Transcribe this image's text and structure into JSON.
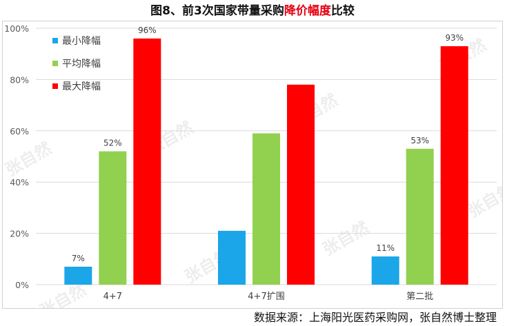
{
  "title": {
    "prefix": "图8、前3次国家带量采购",
    "highlight": "降价幅度",
    "suffix": "比较"
  },
  "source": "数据来源：上海阳光医药采购网，张自然博士整理",
  "watermark": "张自然",
  "colors": {
    "min": "#1aa6e8",
    "avg": "#92d050",
    "max": "#ff0000",
    "highlight_text": "#e60012"
  },
  "chart_data": {
    "type": "bar",
    "categories": [
      "4+7",
      "4+7扩围",
      "第二批"
    ],
    "series": [
      {
        "name": "最小降幅",
        "values": [
          7,
          21,
          11
        ],
        "labels": [
          "7%",
          "",
          "11%"
        ]
      },
      {
        "name": "平均降幅",
        "values": [
          52,
          59,
          53
        ],
        "labels": [
          "52%",
          "",
          "53%"
        ]
      },
      {
        "name": "最大降幅",
        "values": [
          96,
          78,
          93
        ],
        "labels": [
          "96%",
          "",
          "93%"
        ]
      }
    ],
    "ylim": [
      0,
      100
    ],
    "yticks": [
      "0%",
      "20%",
      "40%",
      "60%",
      "80%",
      "100%"
    ],
    "ytick_values": [
      0,
      20,
      40,
      60,
      80,
      100
    ],
    "grid": true,
    "legend_position": "top-left"
  }
}
